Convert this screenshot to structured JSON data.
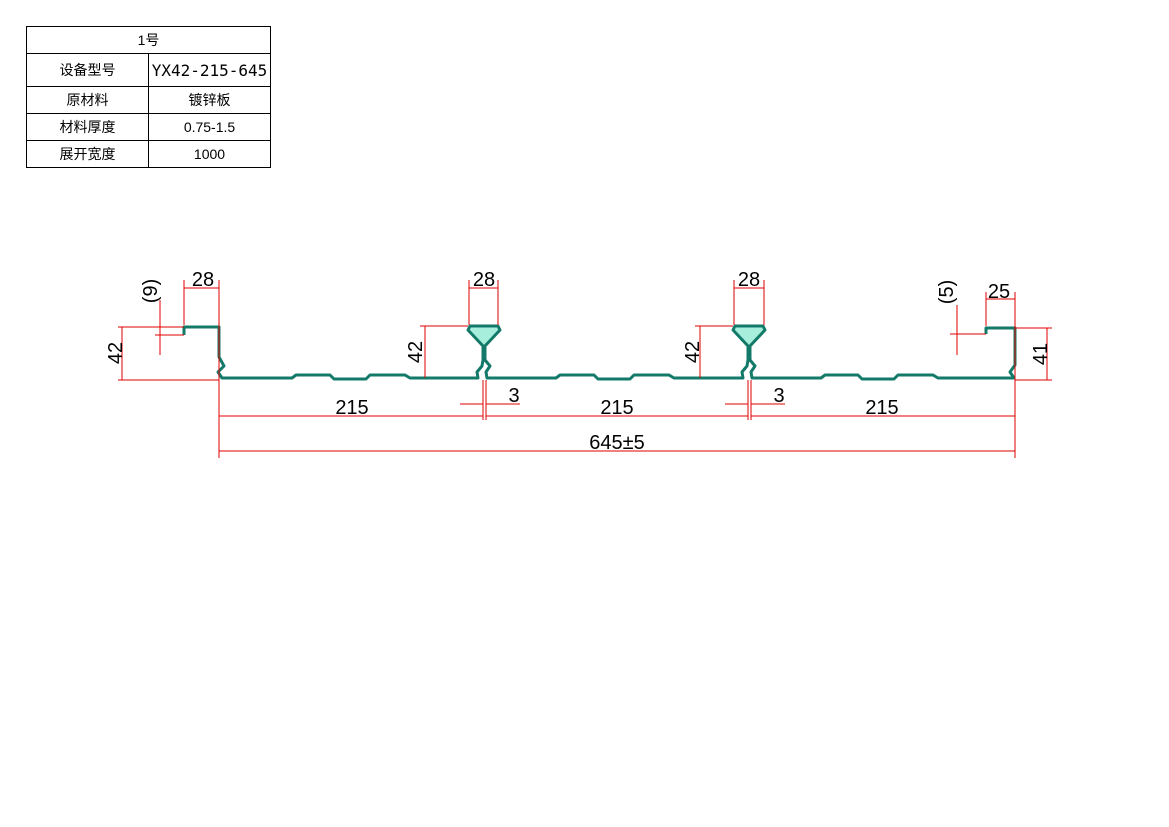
{
  "spec_table": {
    "title": "1号",
    "rows": [
      {
        "label": "设备型号",
        "value": "YX42-215-645"
      },
      {
        "label": "原材料",
        "value": "镀锌板"
      },
      {
        "label": "材料厚度",
        "value": "0.75-1.5"
      },
      {
        "label": "展开宽度",
        "value": "1000"
      }
    ]
  },
  "dimensions": {
    "left_lip": "(9)",
    "left_top_width": "28",
    "left_height": "42",
    "rib1_top_width": "28",
    "rib1_height": "42",
    "rib1_gap": "3",
    "rib2_top_width": "28",
    "rib2_height": "42",
    "rib2_gap": "3",
    "right_lip": "(5)",
    "right_top_width": "25",
    "right_height": "41",
    "span1": "215",
    "span2": "215",
    "span3": "215",
    "total_width": "645±5"
  },
  "colors": {
    "profile": "#137a6a",
    "profile_fill": "#a8eedd",
    "dimension": "#e00000"
  }
}
